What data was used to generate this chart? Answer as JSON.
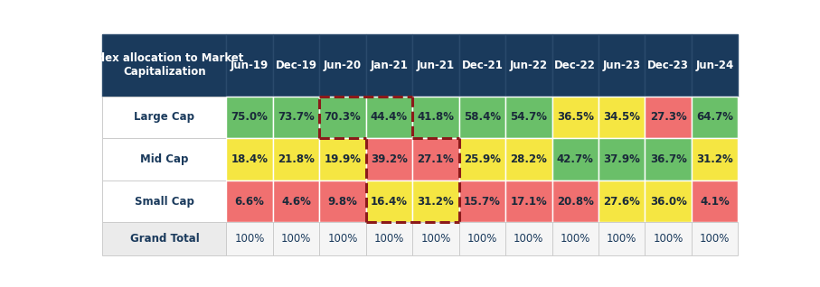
{
  "header_label": "Index allocation to Market\nCapitalization",
  "columns": [
    "Jun-19",
    "Dec-19",
    "Jun-20",
    "Jan-21",
    "Jun-21",
    "Dec-21",
    "Jun-22",
    "Dec-22",
    "Jun-23",
    "Dec-23",
    "Jun-24"
  ],
  "rows": [
    {
      "label": "Large Cap",
      "values": [
        "75.0%",
        "73.7%",
        "70.3%",
        "44.4%",
        "41.8%",
        "58.4%",
        "54.7%",
        "36.5%",
        "34.5%",
        "27.3%",
        "64.7%"
      ],
      "colors": [
        "#6abf69",
        "#6abf69",
        "#6abf69",
        "#6abf69",
        "#6abf69",
        "#6abf69",
        "#6abf69",
        "#f5e642",
        "#f5e642",
        "#f07070",
        "#6abf69"
      ]
    },
    {
      "label": "Mid Cap",
      "values": [
        "18.4%",
        "21.8%",
        "19.9%",
        "39.2%",
        "27.1%",
        "25.9%",
        "28.2%",
        "42.7%",
        "37.9%",
        "36.7%",
        "31.2%"
      ],
      "colors": [
        "#f5e642",
        "#f5e642",
        "#f5e642",
        "#f07070",
        "#f07070",
        "#f5e642",
        "#f5e642",
        "#6abf69",
        "#6abf69",
        "#6abf69",
        "#f5e642"
      ]
    },
    {
      "label": "Small Cap",
      "values": [
        "6.6%",
        "4.6%",
        "9.8%",
        "16.4%",
        "31.2%",
        "15.7%",
        "17.1%",
        "20.8%",
        "27.6%",
        "36.0%",
        "4.1%"
      ],
      "colors": [
        "#f07070",
        "#f07070",
        "#f07070",
        "#f5e642",
        "#f5e642",
        "#f07070",
        "#f07070",
        "#f07070",
        "#f5e642",
        "#f5e642",
        "#f07070"
      ]
    }
  ],
  "grand_total_label": "Grand Total",
  "grand_total_values": [
    "100%",
    "100%",
    "100%",
    "100%",
    "100%",
    "100%",
    "100%",
    "100%",
    "100%",
    "100%",
    "100%"
  ],
  "header_bg": "#1a3a5c",
  "header_text_color": "#ffffff",
  "row_label_bg": "#ffffff",
  "row_label_text_color": "#1a3a5c",
  "grand_total_bg": "#ebebeb",
  "grand_total_text_color": "#1a3a5c",
  "grand_total_cell_bg": "#f5f5f5",
  "dashed_color": "#8b1a1a",
  "cell_green": "#6abf69",
  "cell_yellow": "#f5e642",
  "cell_red": "#f07070"
}
